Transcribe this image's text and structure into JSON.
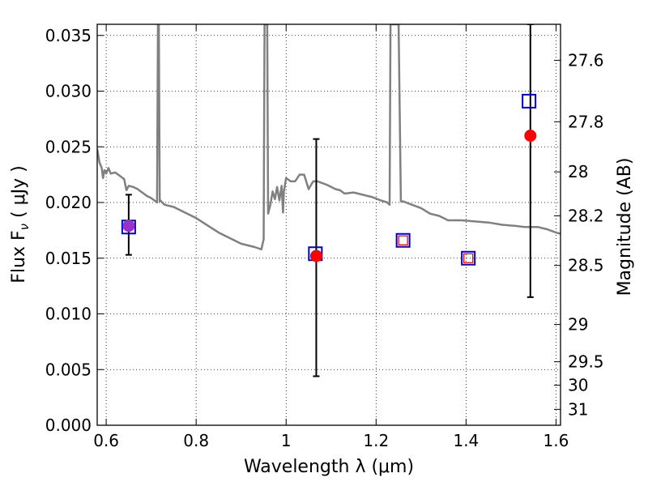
{
  "chart_data": {
    "type": "scatter",
    "title": "",
    "xlabel": "Wavelength  λ (μm)",
    "ylabel": "Flux  F",
    "ylabel_sub": "ν",
    "ylabel_unit": "  ( μJy )",
    "y2label": "Magnitude (AB)",
    "xlim": [
      0.58,
      1.61
    ],
    "ylim": [
      0.0,
      0.036
    ],
    "grid": true,
    "x_ticks": [
      0.6,
      0.8,
      1.0,
      1.2,
      1.4,
      1.6
    ],
    "x_tick_labels": [
      "0.6",
      "0.8",
      "1",
      "1.2",
      "1.4",
      "1.6"
    ],
    "y_ticks": [
      0.0,
      0.005,
      0.01,
      0.015,
      0.02,
      0.025,
      0.03,
      0.035
    ],
    "y_tick_labels": [
      "0.000",
      "0.005",
      "0.010",
      "0.015",
      "0.020",
      "0.025",
      "0.030",
      "0.035"
    ],
    "y2_ticks": [
      {
        "flux": 0.03277,
        "label": "27.6"
      },
      {
        "flux": 0.02725,
        "label": "27.8"
      },
      {
        "flux": 0.02275,
        "label": "28"
      },
      {
        "flux": 0.0188,
        "label": "28.2"
      },
      {
        "flux": 0.01435,
        "label": "28.5"
      },
      {
        "flux": 0.00905,
        "label": "29"
      },
      {
        "flux": 0.0057,
        "label": "29.5"
      },
      {
        "flux": 0.0036,
        "label": "30"
      },
      {
        "flux": 0.00143,
        "label": "31"
      }
    ],
    "colors": {
      "spectrum": "#808080",
      "model": "#0000cc",
      "observed": "#ff0000",
      "upper_limit": "#ff0000",
      "blend": "#9932cc",
      "errorbar": "#000000"
    },
    "series": [
      {
        "name": "model spectrum",
        "style": "line",
        "points": [
          [
            0.58,
            0.0248
          ],
          [
            0.585,
            0.0236
          ],
          [
            0.59,
            0.0231
          ],
          [
            0.593,
            0.0222
          ],
          [
            0.596,
            0.0229
          ],
          [
            0.6,
            0.0226
          ],
          [
            0.605,
            0.0231
          ],
          [
            0.61,
            0.0226
          ],
          [
            0.62,
            0.0227
          ],
          [
            0.63,
            0.0224
          ],
          [
            0.64,
            0.0221
          ],
          [
            0.645,
            0.0211
          ],
          [
            0.65,
            0.0215
          ],
          [
            0.66,
            0.0214
          ],
          [
            0.67,
            0.0212
          ],
          [
            0.68,
            0.0209
          ],
          [
            0.69,
            0.0206
          ],
          [
            0.7,
            0.0204
          ],
          [
            0.71,
            0.0201
          ],
          [
            0.713,
            0.02
          ],
          [
            0.715,
            0.036
          ],
          [
            0.717,
            0.036
          ],
          [
            0.719,
            0.0201
          ],
          [
            0.72,
            0.0202
          ],
          [
            0.73,
            0.0198
          ],
          [
            0.75,
            0.0196
          ],
          [
            0.77,
            0.0192
          ],
          [
            0.8,
            0.0186
          ],
          [
            0.85,
            0.0173
          ],
          [
            0.9,
            0.0163
          ],
          [
            0.93,
            0.016
          ],
          [
            0.945,
            0.0158
          ],
          [
            0.95,
            0.0167
          ],
          [
            0.952,
            0.036
          ],
          [
            0.958,
            0.036
          ],
          [
            0.96,
            0.019
          ],
          [
            0.965,
            0.0198
          ],
          [
            0.97,
            0.021
          ],
          [
            0.975,
            0.0203
          ],
          [
            0.98,
            0.0214
          ],
          [
            0.985,
            0.0202
          ],
          [
            0.99,
            0.0215
          ],
          [
            0.993,
            0.0191
          ],
          [
            0.995,
            0.021
          ],
          [
            1.0,
            0.0222
          ],
          [
            1.01,
            0.0219
          ],
          [
            1.02,
            0.0219
          ],
          [
            1.03,
            0.0225
          ],
          [
            1.04,
            0.0225
          ],
          [
            1.05,
            0.0212
          ],
          [
            1.06,
            0.0219
          ],
          [
            1.07,
            0.0219
          ],
          [
            1.09,
            0.0216
          ],
          [
            1.1,
            0.0214
          ],
          [
            1.11,
            0.0212
          ],
          [
            1.12,
            0.0211
          ],
          [
            1.13,
            0.0208
          ],
          [
            1.15,
            0.0209
          ],
          [
            1.17,
            0.0207
          ],
          [
            1.19,
            0.0205
          ],
          [
            1.21,
            0.0202
          ],
          [
            1.225,
            0.02
          ],
          [
            1.23,
            0.0198
          ],
          [
            1.232,
            0.036
          ],
          [
            1.245,
            0.036
          ],
          [
            1.25,
            0.036
          ],
          [
            1.255,
            0.0201
          ],
          [
            1.26,
            0.0201
          ],
          [
            1.28,
            0.0198
          ],
          [
            1.3,
            0.0195
          ],
          [
            1.32,
            0.019
          ],
          [
            1.34,
            0.0188
          ],
          [
            1.36,
            0.0184
          ],
          [
            1.39,
            0.0184
          ],
          [
            1.42,
            0.0183
          ],
          [
            1.45,
            0.0182
          ],
          [
            1.48,
            0.018
          ],
          [
            1.51,
            0.0179
          ],
          [
            1.53,
            0.0178
          ],
          [
            1.56,
            0.0178
          ],
          [
            1.58,
            0.0176
          ],
          [
            1.6,
            0.0173
          ],
          [
            1.61,
            0.0172
          ]
        ]
      },
      {
        "name": "model photometry",
        "style": "open-square",
        "x": [
          0.65,
          1.065,
          1.26,
          1.405,
          1.54
        ],
        "y": [
          0.0178,
          0.0154,
          0.0166,
          0.015,
          0.0291
        ]
      },
      {
        "name": "observed flux",
        "style": "filled-circle",
        "x": [
          1.067,
          1.543
        ],
        "y": [
          0.0152,
          0.026
        ]
      },
      {
        "name": "upper limits",
        "style": "small-open-square",
        "x": [
          1.26,
          1.405
        ],
        "y": [
          0.0166,
          0.015
        ]
      },
      {
        "name": "blended point",
        "style": "purple-circle",
        "x": [
          0.65
        ],
        "y": [
          0.0179
        ]
      },
      {
        "name": "error bars",
        "style": "errorbar",
        "bars": [
          {
            "x": 0.65,
            "low": 0.0153,
            "high": 0.0207
          },
          {
            "x": 1.067,
            "low": 0.0044,
            "high": 0.0257
          },
          {
            "x": 1.543,
            "low": 0.0115,
            "high": 0.036
          }
        ]
      }
    ]
  }
}
